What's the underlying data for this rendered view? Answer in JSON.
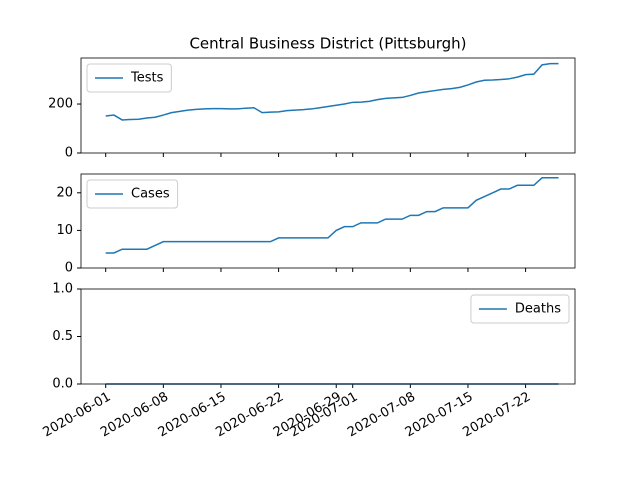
{
  "chart_data": [
    {
      "type": "line",
      "title": "Central Business District (Pittsburgh)",
      "x": [
        "2020-06-01",
        "2020-06-02",
        "2020-06-03",
        "2020-06-04",
        "2020-06-05",
        "2020-06-06",
        "2020-06-07",
        "2020-06-08",
        "2020-06-09",
        "2020-06-10",
        "2020-06-11",
        "2020-06-12",
        "2020-06-13",
        "2020-06-14",
        "2020-06-15",
        "2020-06-16",
        "2020-06-17",
        "2020-06-18",
        "2020-06-19",
        "2020-06-20",
        "2020-06-21",
        "2020-06-22",
        "2020-06-23",
        "2020-06-24",
        "2020-06-25",
        "2020-06-26",
        "2020-06-27",
        "2020-06-28",
        "2020-06-29",
        "2020-06-30",
        "2020-07-01",
        "2020-07-02",
        "2020-07-03",
        "2020-07-04",
        "2020-07-05",
        "2020-07-06",
        "2020-07-07",
        "2020-07-08",
        "2020-07-09",
        "2020-07-10",
        "2020-07-11",
        "2020-07-12",
        "2020-07-13",
        "2020-07-14",
        "2020-07-15",
        "2020-07-16",
        "2020-07-17",
        "2020-07-18",
        "2020-07-19",
        "2020-07-20",
        "2020-07-21",
        "2020-07-22",
        "2020-07-23",
        "2020-07-24",
        "2020-07-25",
        "2020-07-26"
      ],
      "series": [
        {
          "name": "Tests",
          "color": "#1f77b4",
          "values": [
            151,
            155,
            135,
            137,
            138,
            143,
            146,
            155,
            165,
            170,
            175,
            178,
            180,
            181,
            181,
            180,
            180,
            183,
            185,
            165,
            167,
            168,
            173,
            175,
            177,
            180,
            185,
            190,
            195,
            200,
            207,
            208,
            211,
            218,
            223,
            225,
            227,
            235,
            245,
            250,
            255,
            260,
            263,
            268,
            278,
            290,
            297,
            298,
            300,
            303,
            310,
            320,
            322,
            360,
            365,
            365
          ]
        }
      ],
      "xlim": [
        "2020-05-29",
        "2020-07-28"
      ],
      "xticks": [
        "2020-06-01",
        "2020-06-08",
        "2020-06-15",
        "2020-06-22",
        "2020-06-29",
        "2020-07-01",
        "2020-07-08",
        "2020-07-15",
        "2020-07-22"
      ],
      "ylim": [
        0,
        388
      ],
      "yticks": [
        0,
        200
      ],
      "legend": "upper left"
    },
    {
      "type": "line",
      "x": [
        "2020-06-01",
        "2020-06-02",
        "2020-06-03",
        "2020-06-04",
        "2020-06-05",
        "2020-06-06",
        "2020-06-07",
        "2020-06-08",
        "2020-06-09",
        "2020-06-10",
        "2020-06-11",
        "2020-06-12",
        "2020-06-13",
        "2020-06-14",
        "2020-06-15",
        "2020-06-16",
        "2020-06-17",
        "2020-06-18",
        "2020-06-19",
        "2020-06-20",
        "2020-06-21",
        "2020-06-22",
        "2020-06-23",
        "2020-06-24",
        "2020-06-25",
        "2020-06-26",
        "2020-06-27",
        "2020-06-28",
        "2020-06-29",
        "2020-06-30",
        "2020-07-01",
        "2020-07-02",
        "2020-07-03",
        "2020-07-04",
        "2020-07-05",
        "2020-07-06",
        "2020-07-07",
        "2020-07-08",
        "2020-07-09",
        "2020-07-10",
        "2020-07-11",
        "2020-07-12",
        "2020-07-13",
        "2020-07-14",
        "2020-07-15",
        "2020-07-16",
        "2020-07-17",
        "2020-07-18",
        "2020-07-19",
        "2020-07-20",
        "2020-07-21",
        "2020-07-22",
        "2020-07-23",
        "2020-07-24",
        "2020-07-25",
        "2020-07-26"
      ],
      "series": [
        {
          "name": "Cases",
          "color": "#1f77b4",
          "values": [
            4,
            4,
            5,
            5,
            5,
            5,
            6,
            7,
            7,
            7,
            7,
            7,
            7,
            7,
            7,
            7,
            7,
            7,
            7,
            7,
            7,
            8,
            8,
            8,
            8,
            8,
            8,
            8,
            10,
            11,
            11,
            12,
            12,
            12,
            13,
            13,
            13,
            14,
            14,
            15,
            15,
            16,
            16,
            16,
            16,
            18,
            19,
            20,
            21,
            21,
            22,
            22,
            22,
            24,
            24,
            24
          ]
        }
      ],
      "xlim": [
        "2020-05-29",
        "2020-07-28"
      ],
      "xticks": [
        "2020-06-01",
        "2020-06-08",
        "2020-06-15",
        "2020-06-22",
        "2020-06-29",
        "2020-07-01",
        "2020-07-08",
        "2020-07-15",
        "2020-07-22"
      ],
      "ylim": [
        0,
        25
      ],
      "yticks": [
        0,
        10,
        20
      ],
      "legend": "upper left"
    },
    {
      "type": "line",
      "x": [
        "2020-06-01",
        "2020-06-02",
        "2020-06-03",
        "2020-06-04",
        "2020-06-05",
        "2020-06-06",
        "2020-06-07",
        "2020-06-08",
        "2020-06-09",
        "2020-06-10",
        "2020-06-11",
        "2020-06-12",
        "2020-06-13",
        "2020-06-14",
        "2020-06-15",
        "2020-06-16",
        "2020-06-17",
        "2020-06-18",
        "2020-06-19",
        "2020-06-20",
        "2020-06-21",
        "2020-06-22",
        "2020-06-23",
        "2020-06-24",
        "2020-06-25",
        "2020-06-26",
        "2020-06-27",
        "2020-06-28",
        "2020-06-29",
        "2020-06-30",
        "2020-07-01",
        "2020-07-02",
        "2020-07-03",
        "2020-07-04",
        "2020-07-05",
        "2020-07-06",
        "2020-07-07",
        "2020-07-08",
        "2020-07-09",
        "2020-07-10",
        "2020-07-11",
        "2020-07-12",
        "2020-07-13",
        "2020-07-14",
        "2020-07-15",
        "2020-07-16",
        "2020-07-17",
        "2020-07-18",
        "2020-07-19",
        "2020-07-20",
        "2020-07-21",
        "2020-07-22",
        "2020-07-23",
        "2020-07-24",
        "2020-07-25",
        "2020-07-26"
      ],
      "series": [
        {
          "name": "Deaths",
          "color": "#1f77b4",
          "values": [
            0,
            0,
            0,
            0,
            0,
            0,
            0,
            0,
            0,
            0,
            0,
            0,
            0,
            0,
            0,
            0,
            0,
            0,
            0,
            0,
            0,
            0,
            0,
            0,
            0,
            0,
            0,
            0,
            0,
            0,
            0,
            0,
            0,
            0,
            0,
            0,
            0,
            0,
            0,
            0,
            0,
            0,
            0,
            0,
            0,
            0,
            0,
            0,
            0,
            0,
            0,
            0,
            0,
            0,
            0,
            0
          ]
        }
      ],
      "xlim": [
        "2020-05-29",
        "2020-07-28"
      ],
      "xticks": [
        "2020-06-01",
        "2020-06-08",
        "2020-06-15",
        "2020-06-22",
        "2020-06-29",
        "2020-07-01",
        "2020-07-08",
        "2020-07-15",
        "2020-07-22"
      ],
      "xticklabels": true,
      "ylim": [
        0,
        1
      ],
      "yticks": [
        {
          "value": 0,
          "label": "0.0"
        },
        0.5,
        {
          "value": 1,
          "label": "1.0"
        }
      ],
      "legend": "upper right"
    }
  ]
}
